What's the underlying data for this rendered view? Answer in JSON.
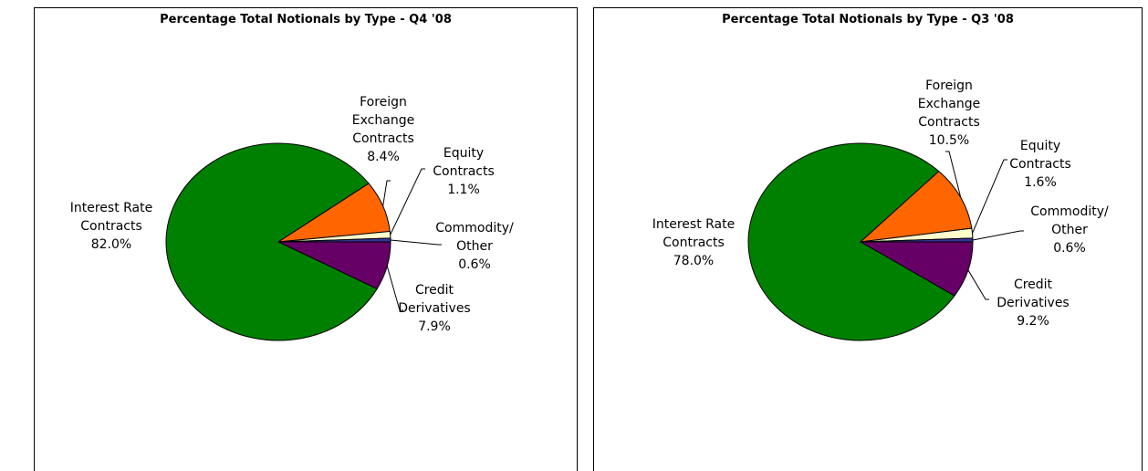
{
  "chart_data": [
    {
      "type": "pie",
      "title": "Percentage Total Notionals by Type - Q4 '08",
      "categories": [
        "Credit Derivatives",
        "Interest Rate Contracts",
        "Foreign Exchange Contracts",
        "Equity Contracts",
        "Commodity/ Other"
      ],
      "values": [
        7.9,
        82,
        8.4,
        1.1,
        0.6
      ],
      "value_labels": [
        "7.9%",
        "82.0%",
        "8.4%",
        "1.1%",
        "0.6%"
      ],
      "colors": [
        "#660066",
        "#008000",
        "#ff6600",
        "#ffffcc",
        "#333399"
      ]
    },
    {
      "type": "pie",
      "title": "Percentage Total Notionals by Type - Q3 '08",
      "categories": [
        "Credit Derivatives",
        "Interest Rate Contracts",
        "Foreign Exchange Contracts",
        "Equity Contracts",
        "Commodity/ Other"
      ],
      "values": [
        9.2,
        78,
        10.5,
        1.6,
        0.6
      ],
      "value_labels": [
        "9.2%",
        "78.0%",
        "10.5%",
        "1.6%",
        "0.6%"
      ],
      "colors": [
        "#660066",
        "#008000",
        "#ff6600",
        "#ffffcc",
        "#333399"
      ]
    }
  ]
}
